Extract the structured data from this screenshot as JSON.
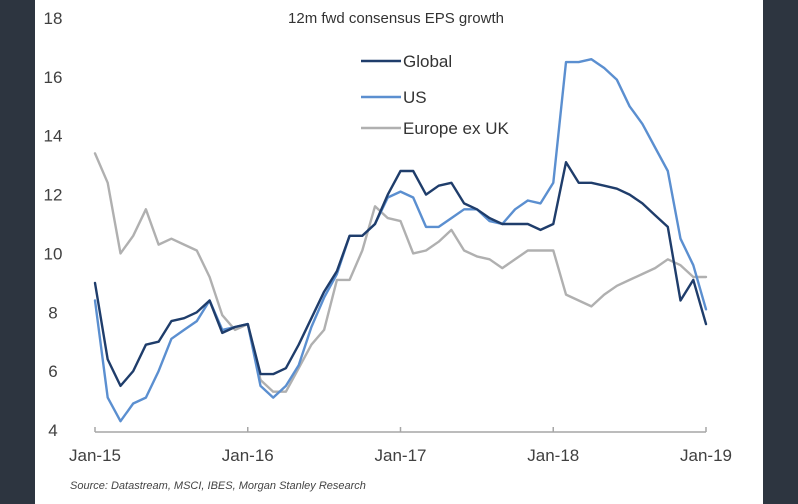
{
  "chart_data": {
    "type": "line",
    "title": "12m fwd consensus EPS growth",
    "xlabel": "",
    "ylabel": "",
    "ylim": [
      4,
      18
    ],
    "yticks": [
      "4",
      "6",
      "8",
      "10",
      "12",
      "14",
      "16",
      "18"
    ],
    "ytick_values": [
      4,
      6,
      8,
      10,
      12,
      14,
      16,
      18
    ],
    "xticks": [
      "Jan-15",
      "Jan-16",
      "Jan-17",
      "Jan-18",
      "Jan-19"
    ],
    "x_start": "Jan-15",
    "x_end": "Jan-19",
    "x_frequency": "monthly",
    "grid": false,
    "legend_position": "top-center",
    "series": [
      {
        "name": "Global",
        "color": "#1f3d6b",
        "values": [
          9.0,
          6.4,
          5.5,
          6.0,
          6.9,
          7.0,
          7.7,
          7.8,
          8.0,
          8.4,
          7.3,
          7.5,
          7.6,
          5.9,
          5.9,
          6.1,
          6.9,
          7.8,
          8.7,
          9.4,
          10.6,
          10.6,
          11.0,
          12.0,
          12.8,
          12.8,
          12.0,
          12.3,
          12.4,
          11.7,
          11.5,
          11.2,
          11.0,
          11.0,
          11.0,
          10.8,
          11.0,
          13.1,
          12.4,
          12.4,
          12.3,
          12.2,
          12.0,
          11.7,
          11.3,
          10.9,
          8.4,
          9.1,
          7.6
        ]
      },
      {
        "name": "US",
        "color": "#5b8fd0",
        "values": [
          8.4,
          5.1,
          4.3,
          4.9,
          5.1,
          6.0,
          7.1,
          7.4,
          7.7,
          8.4,
          7.4,
          7.5,
          7.6,
          5.5,
          5.1,
          5.5,
          6.2,
          7.5,
          8.5,
          9.3,
          10.6,
          10.6,
          11.0,
          11.9,
          12.1,
          11.9,
          10.9,
          10.9,
          11.2,
          11.5,
          11.5,
          11.1,
          11.0,
          11.5,
          11.8,
          11.7,
          12.4,
          16.5,
          16.5,
          16.6,
          16.3,
          15.9,
          15.0,
          14.4,
          13.6,
          12.8,
          10.5,
          9.6,
          8.1
        ]
      },
      {
        "name": "Europe ex UK",
        "color": "#b0b0b0",
        "values": [
          13.4,
          12.4,
          10.0,
          10.6,
          11.5,
          10.3,
          10.5,
          10.3,
          10.1,
          9.2,
          7.9,
          7.4,
          7.6,
          5.7,
          5.3,
          5.3,
          6.1,
          6.9,
          7.4,
          9.1,
          9.1,
          10.1,
          11.6,
          11.2,
          11.1,
          10.0,
          10.1,
          10.4,
          10.8,
          10.1,
          9.9,
          9.8,
          9.5,
          9.8,
          10.1,
          10.1,
          10.1,
          8.6,
          8.4,
          8.2,
          8.6,
          8.9,
          9.1,
          9.3,
          9.5,
          9.8,
          9.6,
          9.2,
          9.2
        ]
      }
    ],
    "source": "Source: Datastream, MSCI, IBES, Morgan Stanley Research"
  },
  "colors": {
    "background_frame": "#2d3540",
    "panel": "#ffffff",
    "axis": "#a6a6a6"
  }
}
